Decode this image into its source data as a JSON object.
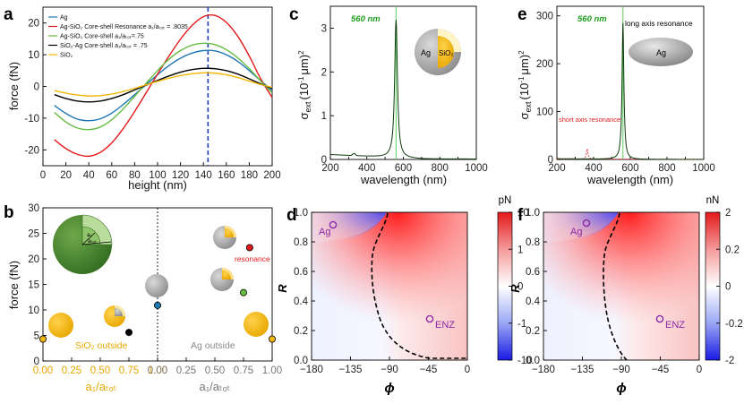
{
  "panels": {
    "a": {
      "label": "a",
      "xlabel": "height (nm)",
      "ylabel": "force (fN)",
      "xticks": [
        "0",
        "20",
        "40",
        "60",
        "80",
        "100",
        "120",
        "140",
        "160",
        "180",
        "200"
      ],
      "yticks": [
        "-20",
        "-10",
        "0",
        "10",
        "20"
      ],
      "legend": [
        {
          "text": "Ag",
          "color": "#1f77b4"
        },
        {
          "text": "Ag-SiO₂ Core-shell Resonance a₁/aₜₒₜ = .8035",
          "color": "#e31a1c"
        },
        {
          "text": "Ag-SiO₂ Core-shell  a₁/aₜₒₜ=.75",
          "color": "#66bb44"
        },
        {
          "text": "SiO₂-Ag  Core-shell  a₁/aₜₒₜ = .75",
          "color": "#000000"
        },
        {
          "text": "SiO₂",
          "color": "#f2b705"
        }
      ]
    },
    "b": {
      "label": "b",
      "ylabel": "force (fN)",
      "yticks": [
        "0",
        "5",
        "10",
        "15",
        "20",
        "25",
        "30"
      ],
      "xticks_left": [
        "0.00",
        "0.25",
        "0.50",
        "0.75",
        "1.00"
      ],
      "xticks_right": [
        "0.00",
        "0.25",
        "0.50",
        "0.75",
        "1.00"
      ],
      "xlabel_left": "a₁/aₜₒₜ",
      "xlabel_right": "a₁/aₜₒₜ",
      "text_sio2_outside": "SiO₂ outside",
      "text_ag_outside": "Ag outside",
      "text_resonance": "resonance",
      "inset_a1": "a₁",
      "inset_atot": "aₜₒₜ"
    },
    "c": {
      "label": "c",
      "xlabel": "wavelength (nm)",
      "ylabel_sigma": "σ",
      "ylabel_sub": "ext",
      "ylabel_unit": "(10",
      "ylabel_exp": "-1",
      "ylabel_tail": "μm)",
      "ylabel_sq": "2",
      "xticks": [
        "200",
        "300",
        "400",
        "500",
        "600",
        "700",
        "800",
        "900",
        "1000"
      ],
      "yticks": [
        "0",
        "1",
        "2",
        "3"
      ],
      "peak_label": "560 nm",
      "inset_ag": "Ag",
      "inset_sio2": "SiO₂"
    },
    "d": {
      "label": "d",
      "xlabel": "ϕ",
      "ylabel": "R",
      "xticks": [
        "-180",
        "-135",
        "-90",
        "-45",
        "0"
      ],
      "yticks": [
        "0.0",
        "0.2",
        "0.4",
        "0.6",
        "0.8",
        "1.0"
      ],
      "unit": "pN",
      "cbar_ticks": [
        "10",
        "1",
        "0",
        "-1",
        "-10"
      ],
      "marker_ag": "Ag",
      "marker_enz": "ENZ"
    },
    "e": {
      "label": "e",
      "xlabel": "wavelength (nm)",
      "ylabel_sigma": "σ",
      "ylabel_sub": "ext",
      "ylabel_unit": "(10",
      "ylabel_exp": "-1",
      "ylabel_tail": "μm)",
      "ylabel_sq": "2",
      "xticks": [
        "200",
        "300",
        "400",
        "500",
        "600",
        "700",
        "800",
        "900",
        "1000"
      ],
      "yticks": [
        "0",
        "100",
        "200",
        "300"
      ],
      "peak_label": "560 nm",
      "long_axis": "long axis resonance",
      "short_axis": "short axis resonance",
      "inset_ag": "Ag"
    },
    "f": {
      "label": "f",
      "xlabel": "ϕ",
      "ylabel": "R",
      "xticks": [
        "-180",
        "-135",
        "-90",
        "-45",
        "0"
      ],
      "yticks": [
        "0.0",
        "0.2",
        "0.4",
        "0.6",
        "0.8",
        "1.0"
      ],
      "unit": "nN",
      "cbar_ticks": [
        "2",
        "0.2",
        "0",
        "-0.2",
        "-2"
      ],
      "marker_ag": "Ag",
      "marker_enz": "ENZ"
    }
  },
  "chart_data": [
    {
      "id": "a",
      "type": "line",
      "xlabel": "height (nm)",
      "ylabel": "force (fN)",
      "xlim": [
        0,
        200
      ],
      "ylim": [
        -25,
        25
      ],
      "vline_x": 144,
      "x": [
        10,
        20,
        30,
        40,
        50,
        60,
        70,
        80,
        90,
        100,
        110,
        120,
        130,
        140,
        150,
        160,
        170,
        180,
        190,
        200
      ],
      "series": [
        {
          "name": "Ag",
          "color": "#1f77b4",
          "values": [
            -6,
            -8.5,
            -10.3,
            -10.8,
            -10.2,
            -8.4,
            -5.7,
            -2.6,
            0.6,
            3.7,
            6.6,
            8.9,
            10.5,
            11.3,
            11.2,
            10.0,
            7.9,
            5.0,
            1.8,
            -1.3
          ]
        },
        {
          "name": "Ag-SiO2 Core-shell Resonance a1/atot = .8035",
          "color": "#e31a1c",
          "values": [
            -16.8,
            -19.6,
            -21.4,
            -22,
            -20.8,
            -17.8,
            -13.3,
            -7.9,
            -2.0,
            3.9,
            9.6,
            14.9,
            19.2,
            22,
            22.4,
            20.2,
            15.8,
            9.6,
            2.4,
            -3.5
          ]
        },
        {
          "name": "Ag-SiO2 Core-shell a1/atot=.75",
          "color": "#66bb44",
          "values": [
            -8.2,
            -11.2,
            -13.1,
            -13.6,
            -12.8,
            -10.5,
            -7.1,
            -3.1,
            1.0,
            5.0,
            8.6,
            11.3,
            13.0,
            13.6,
            13.2,
            11.6,
            9.0,
            5.6,
            1.7,
            -2.0
          ]
        },
        {
          "name": "SiO2-Ag Core-shell a1/atot = .75",
          "color": "#000000",
          "values": [
            -2.6,
            -3.8,
            -4.6,
            -4.9,
            -4.6,
            -3.8,
            -2.6,
            -1.1,
            0.4,
            1.9,
            3.3,
            4.5,
            5.3,
            5.7,
            5.6,
            5.0,
            3.9,
            2.4,
            0.8,
            -0.6
          ]
        },
        {
          "name": "SiO2",
          "color": "#f2b705",
          "values": [
            -1.3,
            -2.1,
            -2.7,
            -3.0,
            -2.9,
            -2.4,
            -1.6,
            -0.6,
            0.5,
            1.6,
            2.6,
            3.4,
            4.0,
            4.3,
            4.2,
            3.7,
            2.8,
            1.7,
            0.6,
            -0.3
          ]
        }
      ]
    },
    {
      "id": "b",
      "type": "scatter",
      "ylabel": "force (fN)",
      "ylim": [
        0,
        30
      ],
      "series": [
        {
          "name": "SiO2 outside",
          "x": [
            0.0,
            0.75
          ],
          "y": [
            4.3,
            5.6
          ],
          "colors": [
            "#f2b705",
            "#000000"
          ]
        },
        {
          "name": "Ag outside",
          "x": [
            0.0,
            0.75,
            0.8035,
            1.0
          ],
          "y": [
            10.9,
            13.4,
            22.2,
            4.3
          ],
          "colors": [
            "#1f77b4",
            "#66bb44",
            "#e31a1c",
            "#f2b705"
          ]
        }
      ]
    },
    {
      "id": "c",
      "type": "line",
      "xlabel": "wavelength (nm)",
      "xlim": [
        200,
        1000
      ],
      "ylim": [
        0,
        3.5
      ],
      "vline_x": 560,
      "series": [
        {
          "name": "extinction",
          "color": "#0b3a0b",
          "peak_x": 560,
          "peak_y": 3.15,
          "baseline": 0.1
        }
      ]
    },
    {
      "id": "e",
      "type": "line",
      "xlabel": "wavelength (nm)",
      "xlim": [
        200,
        1000
      ],
      "ylim": [
        0,
        320
      ],
      "vline_x": 560,
      "series": [
        {
          "name": "long axis resonance",
          "color": "#0b3a0b",
          "peak_x": 560,
          "peak_y": 285
        },
        {
          "name": "short axis resonance",
          "color": "#e31a1c",
          "peak_x": 365,
          "peak_y": 22
        }
      ]
    },
    {
      "id": "d",
      "type": "heatmap",
      "xlabel": "phi",
      "ylabel": "R",
      "xlim": [
        -180,
        0
      ],
      "ylim": [
        0,
        1
      ],
      "colorbar_unit": "pN",
      "colorbar_range": [
        -10,
        10
      ],
      "markers": [
        {
          "name": "Ag",
          "x": -135,
          "y": 0.94
        },
        {
          "name": "ENZ",
          "x": -45,
          "y": 0.28
        }
      ]
    },
    {
      "id": "f",
      "type": "heatmap",
      "xlabel": "phi",
      "ylabel": "R",
      "xlim": [
        -180,
        0
      ],
      "ylim": [
        0,
        1
      ],
      "colorbar_unit": "nN",
      "colorbar_range": [
        -2,
        2
      ],
      "markers": [
        {
          "name": "Ag",
          "x": -135,
          "y": 0.94
        },
        {
          "name": "ENZ",
          "x": -45,
          "y": 0.28
        }
      ]
    }
  ]
}
